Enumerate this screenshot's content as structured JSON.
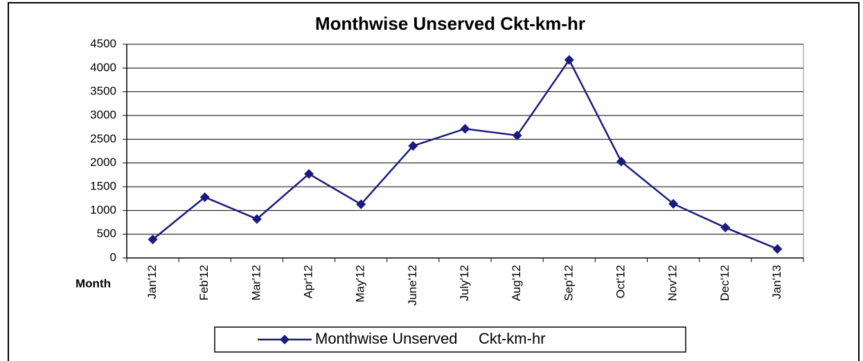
{
  "chart_data": {
    "type": "line",
    "title": "Monthwise Unserved Ckt-km-hr",
    "x_label": "Month",
    "categories": [
      "Jan'12",
      "Feb'12",
      "Mar'12",
      "Apr'12",
      "May'12",
      "June'12",
      "July'12",
      "Aug'12",
      "Sep'12",
      "Oct'12",
      "Nov'12",
      "Dec'12",
      "Jan'13"
    ],
    "series": [
      {
        "name": "Monthwise Unserved     Ckt-km-hr",
        "color": "#1b1b7e",
        "values": [
          390,
          1280,
          820,
          1770,
          1130,
          2360,
          2720,
          2580,
          4170,
          2030,
          1140,
          640,
          190
        ]
      }
    ],
    "ylim": [
      0,
      4500
    ],
    "yticks": [
      0,
      500,
      1000,
      1500,
      2000,
      2500,
      3000,
      3500,
      4000,
      4500
    ],
    "grid": true,
    "legend": "bottom"
  }
}
